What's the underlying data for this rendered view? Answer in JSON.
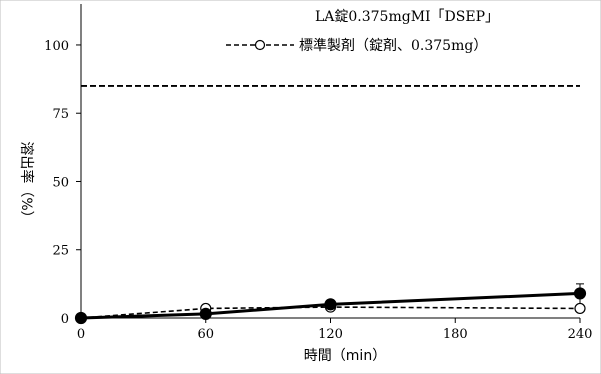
{
  "chart_data": {
    "type": "line",
    "title": "",
    "xlabel": "時間（min）",
    "ylabel": "溶出率（%）",
    "xlim": [
      0,
      240
    ],
    "ylim": [
      0,
      115
    ],
    "xticks": [
      0,
      60,
      120,
      180,
      240
    ],
    "yticks": [
      0,
      25,
      50,
      75,
      100
    ],
    "grid": false,
    "legend_position": "top-right",
    "reference_line": {
      "y": 85,
      "style": "dashed"
    },
    "series": [
      {
        "name": "LA錠0.375mgMI「DSEP」",
        "x": [
          0,
          60,
          120,
          240
        ],
        "y": [
          0,
          1.5,
          5,
          9
        ],
        "y_error": [
          0,
          0.5,
          1,
          3.5
        ],
        "line_style": "solid",
        "marker": "filled-circle",
        "color": "#000000"
      },
      {
        "name": "標準製剤（錠剤、0.375mg）",
        "x": [
          0,
          60,
          120,
          240
        ],
        "y": [
          0,
          3.5,
          4,
          3.5
        ],
        "line_style": "dashed",
        "marker": "open-circle",
        "color": "#000000"
      }
    ]
  }
}
